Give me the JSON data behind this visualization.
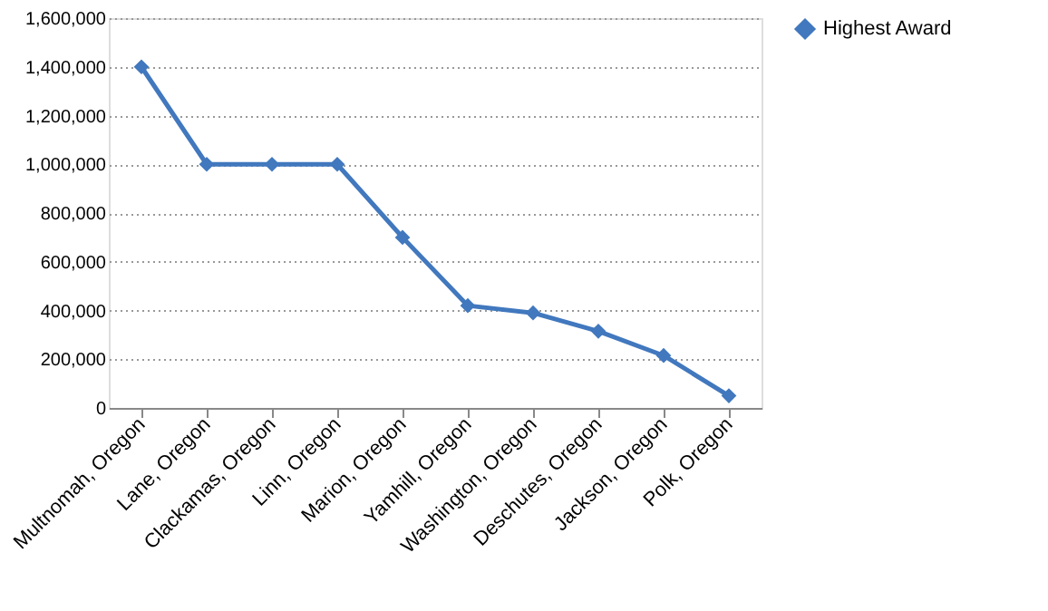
{
  "chart_data": {
    "type": "line",
    "categories": [
      "Multnomah, Oregon",
      "Lane, Oregon",
      "Clackamas, Oregon",
      "Linn, Oregon",
      "Marion, Oregon",
      "Yamhill, Oregon",
      "Washington, Oregon",
      "Deschutes, Oregon",
      "Jackson, Oregon",
      "Polk, Oregon"
    ],
    "series": [
      {
        "name": "Highest Award",
        "color": "#4178be",
        "values": [
          1400000,
          1000000,
          1000000,
          1000000,
          700000,
          420000,
          390000,
          315000,
          215000,
          50000
        ]
      }
    ],
    "ylim": [
      0,
      1600000
    ],
    "yticks": [
      0,
      {
        "value": 200000,
        "label": "200,000"
      },
      {
        "value": 400000,
        "label": "400,000"
      },
      {
        "value": 600000,
        "label": "600,000"
      },
      {
        "value": 800000,
        "label": "800,000"
      },
      {
        "value": 1000000,
        "label": "1,000,000"
      },
      {
        "value": 1200000,
        "label": "1,200,000"
      },
      {
        "value": 1400000,
        "label": "1,400,000"
      },
      {
        "value": 1600000,
        "label": "1,600,000"
      }
    ],
    "grid": "y",
    "legend": "right",
    "marker": "diamond",
    "line_style": "solid"
  }
}
